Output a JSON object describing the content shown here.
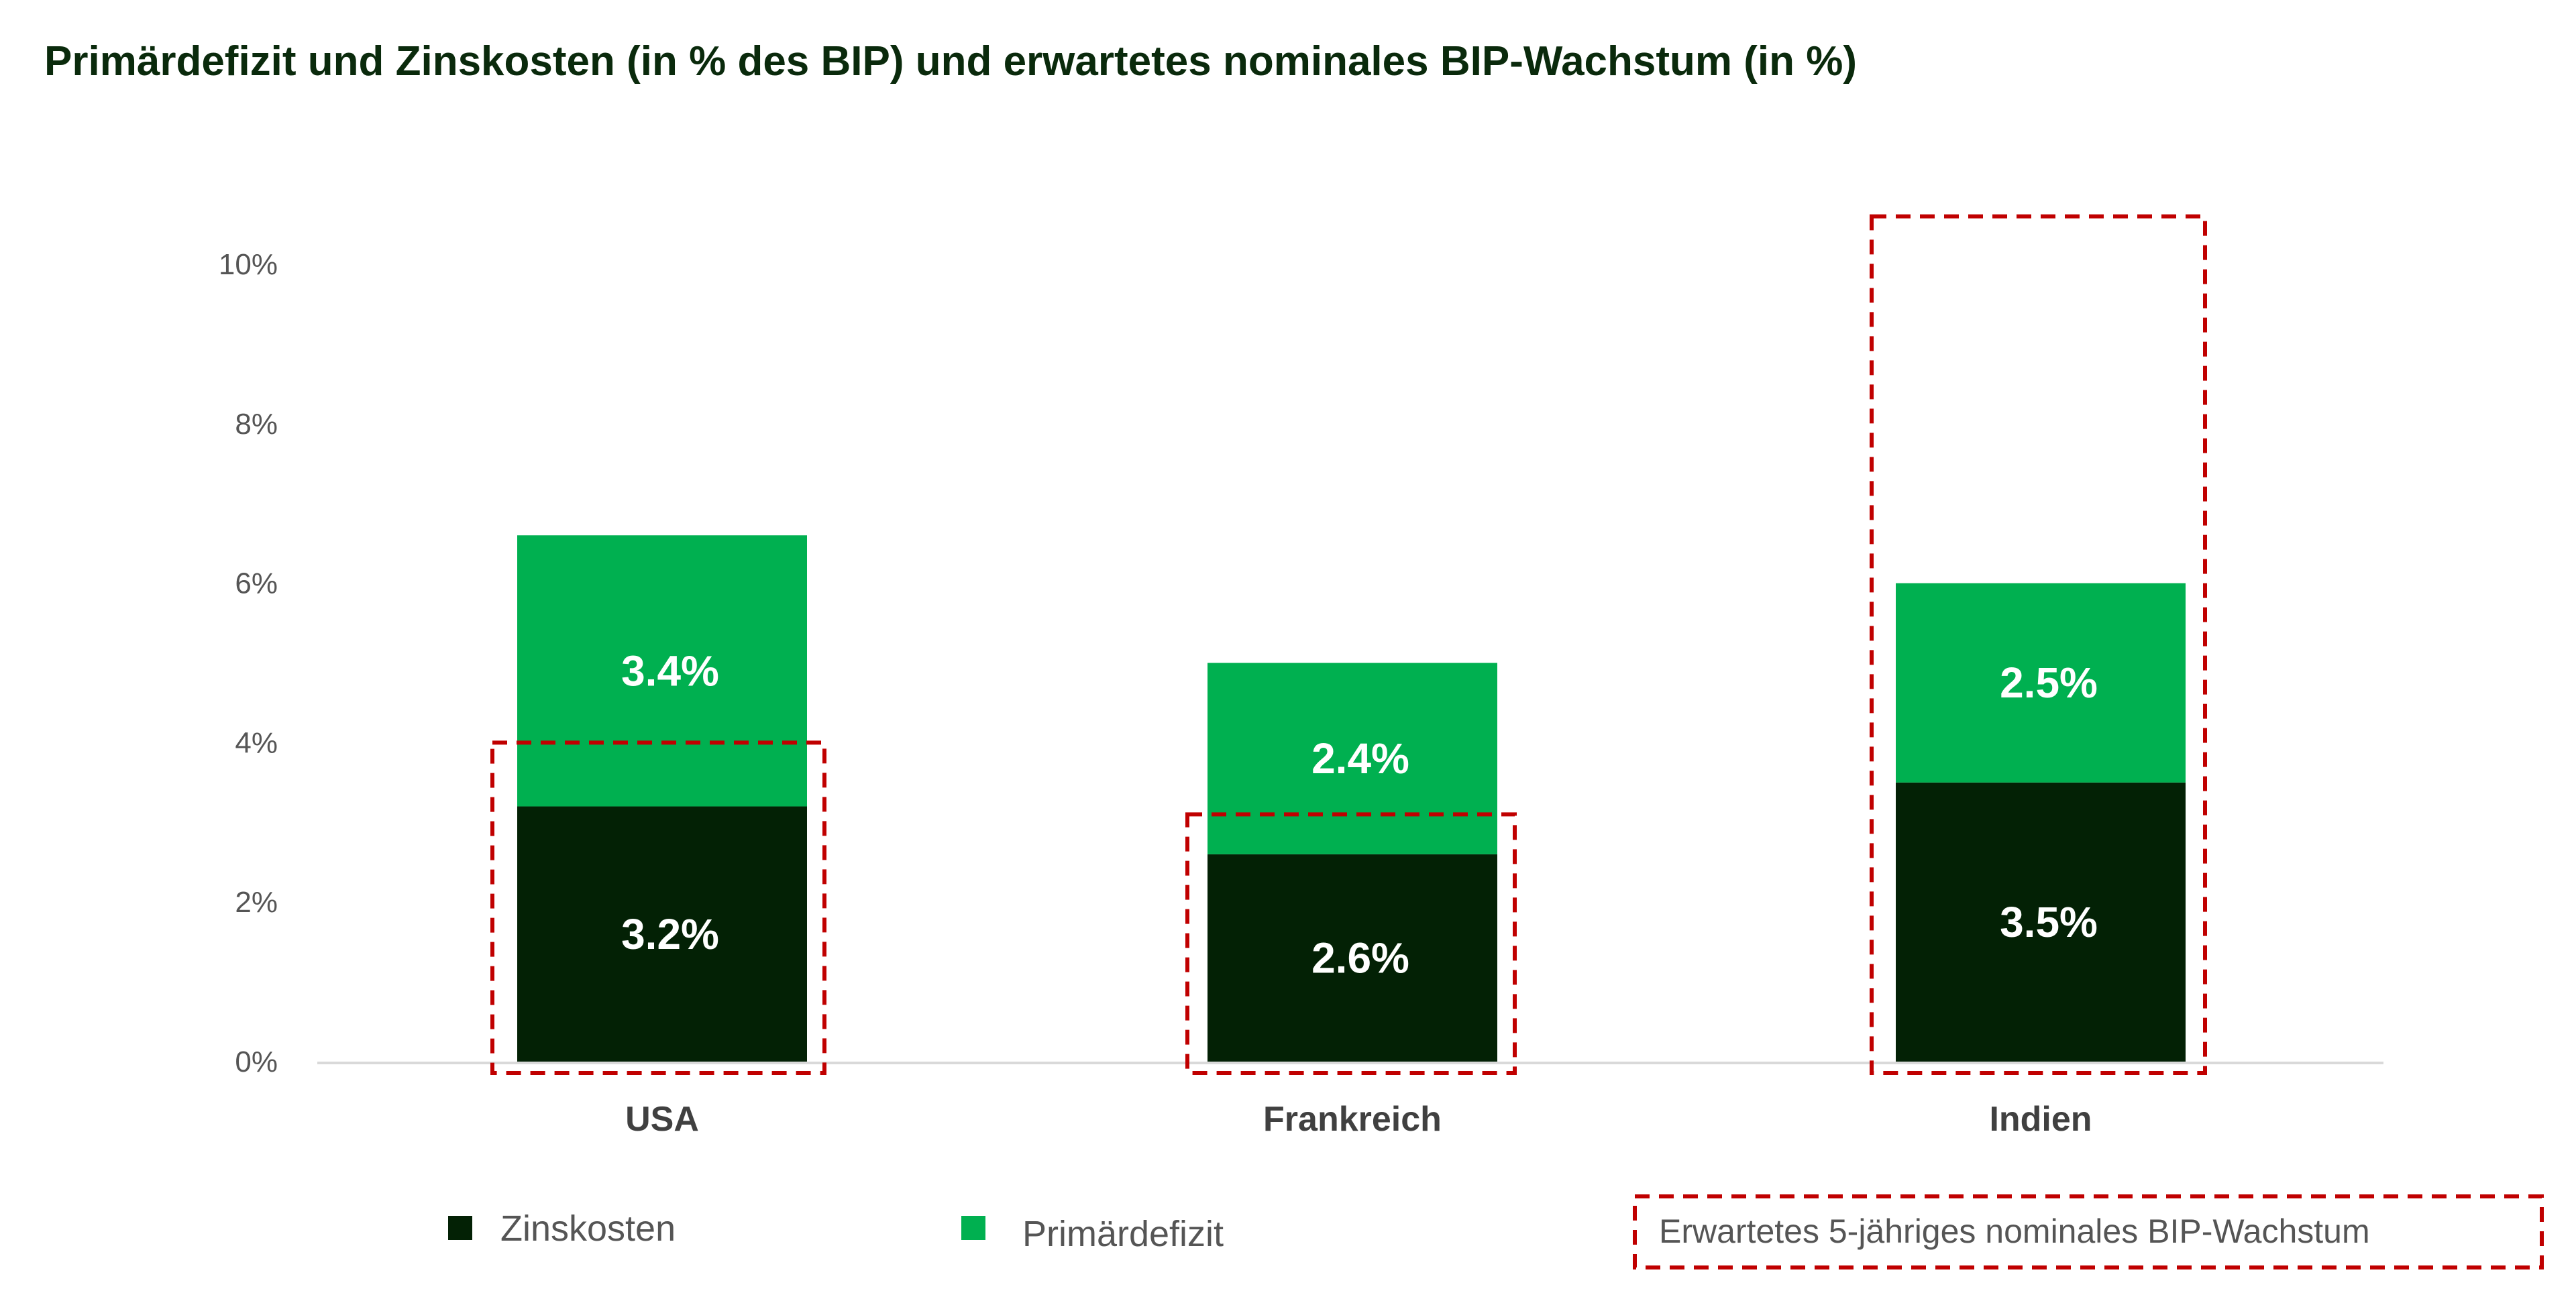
{
  "colors": {
    "zinskosten": "#032105",
    "primaerdefizit": "#00b050",
    "growth_box": "#c00000",
    "axis": "#d9d9d9"
  },
  "chart_data": {
    "type": "bar",
    "stacked": true,
    "title": "Primärdefizit und Zinskosten (in % des BIP) und erwartetes nominales BIP-Wachstum (in %)",
    "xlabel": "",
    "ylabel": "",
    "ylim": [
      0,
      10
    ],
    "yticks": [
      0,
      2,
      4,
      6,
      8,
      10
    ],
    "ytick_labels": [
      "0%",
      "2%",
      "4%",
      "6%",
      "8%",
      "10%"
    ],
    "grid": false,
    "categories": [
      "USA",
      "Frankreich",
      "Indien"
    ],
    "series": [
      {
        "name": "Zinskosten",
        "values": [
          3.2,
          2.6,
          3.5
        ],
        "labels": [
          "3.2%",
          "2.6%",
          "3.5%"
        ]
      },
      {
        "name": "Primärdefizit",
        "values": [
          3.4,
          2.4,
          2.5
        ],
        "labels": [
          "3.4%",
          "2.4%",
          "2.5%"
        ]
      }
    ],
    "overlay": {
      "name": "Erwartetes 5-jähriges nominales BIP-Wachstum",
      "style": "dashed-box",
      "values": [
        4.0,
        3.1,
        10.6
      ]
    },
    "legend_position": "bottom"
  }
}
